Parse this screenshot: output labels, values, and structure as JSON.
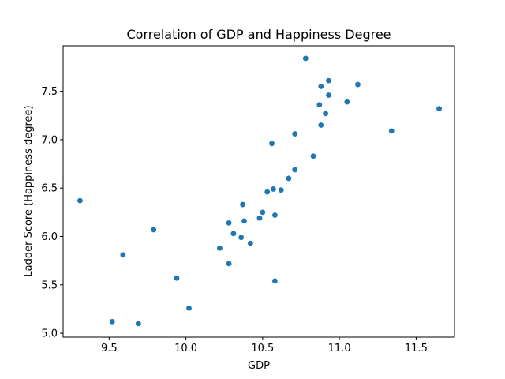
{
  "chart_data": {
    "type": "scatter",
    "title": "Correlation of GDP and Happiness Degree",
    "xlabel": "GDP",
    "ylabel": "Ladder Score (Happiness degree)",
    "xlim": [
      9.2,
      11.75
    ],
    "ylim": [
      4.96,
      7.97
    ],
    "xticks": [
      9.5,
      10.0,
      10.5,
      11.0,
      11.5
    ],
    "xtick_labels": [
      "9.5",
      "10.0",
      "10.5",
      "11.0",
      "11.5"
    ],
    "yticks": [
      5.0,
      5.5,
      6.0,
      6.5,
      7.0,
      7.5
    ],
    "ytick_labels": [
      "5.0",
      "5.5",
      "6.0",
      "6.5",
      "7.0",
      "7.5"
    ],
    "grid": false,
    "marker_color": "#1f77b4",
    "points": [
      {
        "x": 9.31,
        "y": 6.37
      },
      {
        "x": 9.52,
        "y": 5.12
      },
      {
        "x": 9.59,
        "y": 5.81
      },
      {
        "x": 9.69,
        "y": 5.1
      },
      {
        "x": 9.79,
        "y": 6.07
      },
      {
        "x": 9.94,
        "y": 5.57
      },
      {
        "x": 10.02,
        "y": 5.26
      },
      {
        "x": 10.22,
        "y": 5.88
      },
      {
        "x": 10.28,
        "y": 6.14
      },
      {
        "x": 10.28,
        "y": 5.72
      },
      {
        "x": 10.31,
        "y": 6.03
      },
      {
        "x": 10.36,
        "y": 5.99
      },
      {
        "x": 10.37,
        "y": 6.33
      },
      {
        "x": 10.38,
        "y": 6.16
      },
      {
        "x": 10.42,
        "y": 5.93
      },
      {
        "x": 10.48,
        "y": 6.19
      },
      {
        "x": 10.5,
        "y": 6.25
      },
      {
        "x": 10.53,
        "y": 6.46
      },
      {
        "x": 10.56,
        "y": 6.96
      },
      {
        "x": 10.57,
        "y": 6.49
      },
      {
        "x": 10.58,
        "y": 6.22
      },
      {
        "x": 10.58,
        "y": 5.54
      },
      {
        "x": 10.62,
        "y": 6.48
      },
      {
        "x": 10.67,
        "y": 6.6
      },
      {
        "x": 10.71,
        "y": 7.06
      },
      {
        "x": 10.71,
        "y": 6.69
      },
      {
        "x": 10.78,
        "y": 7.84
      },
      {
        "x": 10.83,
        "y": 6.83
      },
      {
        "x": 10.87,
        "y": 7.36
      },
      {
        "x": 10.88,
        "y": 7.55
      },
      {
        "x": 10.88,
        "y": 7.15
      },
      {
        "x": 10.91,
        "y": 7.27
      },
      {
        "x": 10.93,
        "y": 7.61
      },
      {
        "x": 10.93,
        "y": 7.46
      },
      {
        "x": 11.05,
        "y": 7.39
      },
      {
        "x": 11.12,
        "y": 7.57
      },
      {
        "x": 11.34,
        "y": 7.09
      },
      {
        "x": 11.65,
        "y": 7.32
      }
    ]
  }
}
